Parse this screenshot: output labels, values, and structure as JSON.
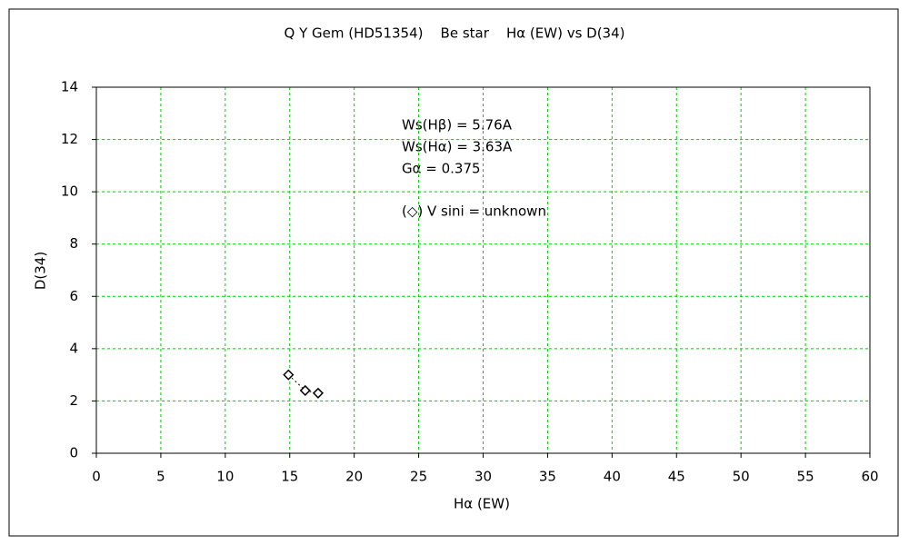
{
  "chart_data": {
    "type": "scatter",
    "title": "Q Y Gem (HD51354)    Be star    Hα (EW) vs D(34)",
    "x_label": "Hα (EW)",
    "y_label": "D(34)",
    "annotations": [
      "Ws(Hβ) = 5.76A",
      "Ws(Hα) = 3.63A",
      "Gα = 0.375",
      "(◇) V sini = unknown"
    ],
    "x": [
      14.9,
      16.2,
      17.2
    ],
    "values": [
      3.0,
      2.4,
      2.3
    ],
    "color": "#000000",
    "xlim": [
      0,
      60
    ],
    "xticks": [
      0,
      5,
      10,
      15,
      20,
      25,
      30,
      35,
      40,
      45,
      50,
      55,
      60
    ],
    "ylim": [
      0,
      14
    ],
    "yticks": [
      0,
      2,
      4,
      6,
      8,
      10,
      12,
      14
    ],
    "grid": true
  }
}
